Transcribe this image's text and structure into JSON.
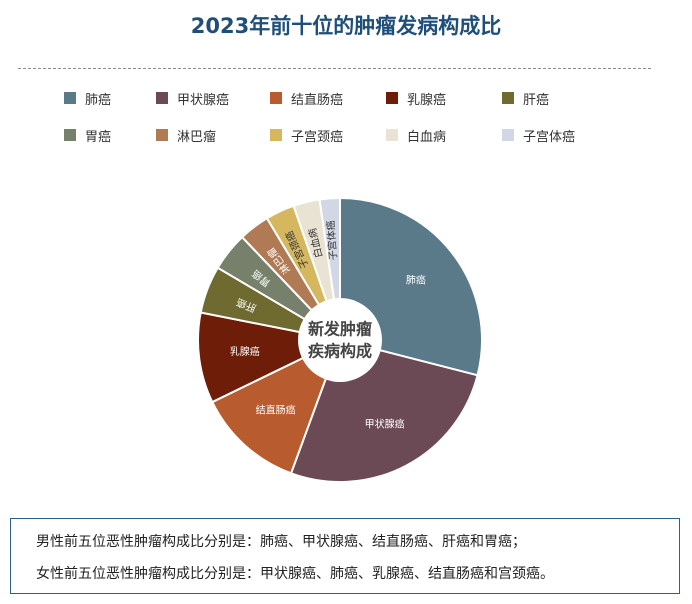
{
  "chart_data": {
    "type": "pie",
    "title": "2023年前十位的肿瘤发病构成比",
    "center_label": [
      "新发肿瘤",
      "疾病构成"
    ],
    "legend_position": "top",
    "series": [
      {
        "name": "肺癌",
        "value": 29.0,
        "color": "#5a7a8a"
      },
      {
        "name": "甲状腺癌",
        "value": 26.6,
        "color": "#6b4a55"
      },
      {
        "name": "结直肠癌",
        "value": 12.2,
        "color": "#b85c30"
      },
      {
        "name": "乳腺癌",
        "value": 10.3,
        "color": "#6e1e08"
      },
      {
        "name": "肝癌",
        "value": 5.4,
        "color": "#6f6a30"
      },
      {
        "name": "胃癌",
        "value": 4.4,
        "color": "#76806a"
      },
      {
        "name": "淋巴瘤",
        "value": 3.5,
        "color": "#b07a55"
      },
      {
        "name": "子宫颈癌",
        "value": 3.3,
        "color": "#d4b75e"
      },
      {
        "name": "白血病",
        "value": 3.0,
        "color": "#e8e3d3"
      },
      {
        "name": "子宫体癌",
        "value": 2.3,
        "color": "#d2d7e6"
      }
    ]
  },
  "summary": {
    "line1": "男性前五位恶性肿瘤构成比分别是：肺癌、甲状腺癌、结直肠癌、肝癌和胃癌；",
    "line2": "女性前五位恶性肿瘤构成比分别是：甲状腺癌、肺癌、乳腺癌、结直肠癌和宫颈癌。"
  }
}
